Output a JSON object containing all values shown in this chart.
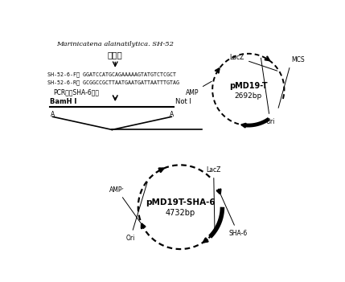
{
  "title_italic": "Marinicatena alainatilytica. SH-52",
  "title_chinese": "基因组",
  "primer_f": "SH-52-6-F： GGATCCATGCAGAAAAAGTATGTCTCGCT",
  "primer_r": "SH-52-6-R： GCGGCCGCTTAATGAATGATTAATTTGTAG",
  "pcr_label": "PCR扩增SHA-6基因",
  "bamh_label": "BamH I",
  "not_label": "Not I",
  "plasmid1_name": "pMD19-T",
  "plasmid1_size": "2692bp",
  "plasmid2_name": "pMD19T-SHA-6",
  "plasmid2_size": "4732bp",
  "bg_color": "#ffffff"
}
